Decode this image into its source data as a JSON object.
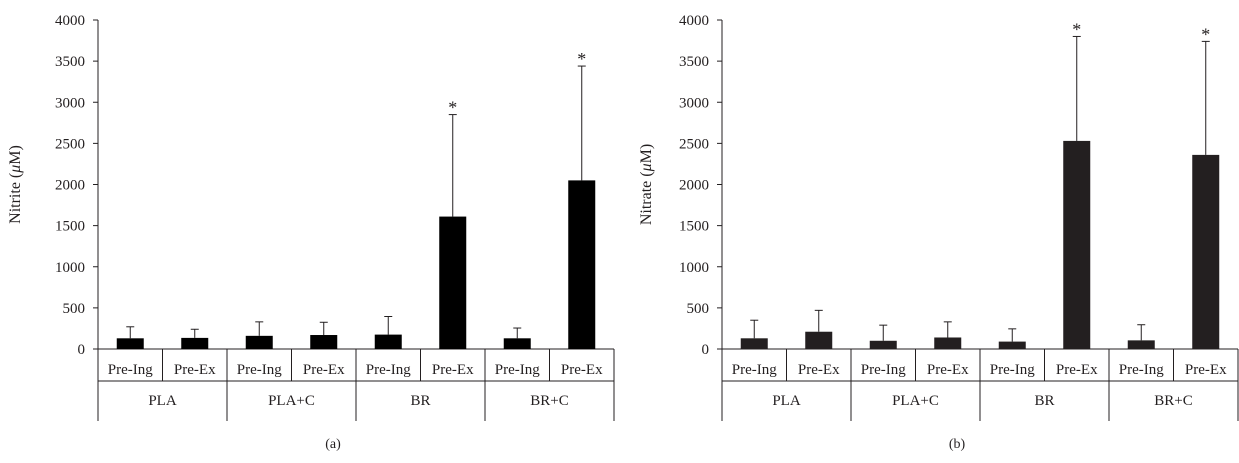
{
  "chart_data": [
    {
      "panel_label": "(a)",
      "type": "bar",
      "ylabel_prefix": "Nitrite (",
      "ylabel_unit_symbol": "μ",
      "ylabel_suffix": "M)",
      "ylim": [
        0,
        4000
      ],
      "yticks": [
        0,
        500,
        1000,
        1500,
        2000,
        2500,
        3000,
        3500,
        4000
      ],
      "categories": [
        "Pre-Ing",
        "Pre-Ex",
        "Pre-Ing",
        "Pre-Ex",
        "Pre-Ing",
        "Pre-Ex",
        "Pre-Ing",
        "Pre-Ex"
      ],
      "groups": [
        "PLA",
        "PLA+C",
        "BR",
        "BR+C"
      ],
      "values": [
        130,
        135,
        160,
        170,
        175,
        1610,
        130,
        2050
      ],
      "error_upper": [
        140,
        105,
        170,
        155,
        220,
        1240,
        125,
        1390
      ],
      "significance": [
        "",
        "",
        "",
        "",
        "",
        "*",
        "",
        "*"
      ],
      "grid": false,
      "bar_color": "#000000"
    },
    {
      "panel_label": "(b)",
      "type": "bar",
      "ylabel_prefix": "Nitrate (",
      "ylabel_unit_symbol": "μ",
      "ylabel_suffix": "M)",
      "ylim": [
        0,
        4000
      ],
      "yticks": [
        0,
        500,
        1000,
        1500,
        2000,
        2500,
        3000,
        3500,
        4000
      ],
      "categories": [
        "Pre-Ing",
        "Pre-Ex",
        "Pre-Ing",
        "Pre-Ex",
        "Pre-Ing",
        "Pre-Ex",
        "Pre-Ing",
        "Pre-Ex"
      ],
      "groups": [
        "PLA",
        "PLA+C",
        "BR",
        "BR+C"
      ],
      "values": [
        130,
        210,
        100,
        140,
        90,
        2530,
        105,
        2360
      ],
      "error_upper": [
        220,
        260,
        190,
        190,
        155,
        1270,
        190,
        1380
      ],
      "significance": [
        "",
        "",
        "",
        "",
        "",
        "*",
        "",
        "*"
      ],
      "grid": false,
      "bar_color": "#231f20"
    }
  ]
}
